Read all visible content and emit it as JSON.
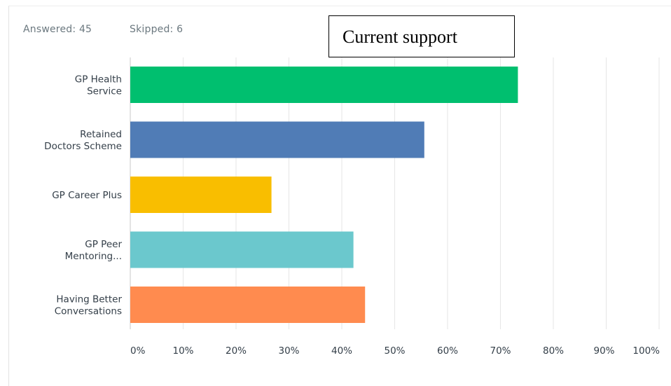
{
  "summary": {
    "answered_label": "Answered:",
    "answered_value": "45",
    "skipped_label": "Skipped:",
    "skipped_value": "6"
  },
  "annotation": {
    "text": "Current support"
  },
  "colors": {
    "text": "#333e48",
    "muted": "#6b787f",
    "grid": "#e6e6e6",
    "axis": "#c8c8c8"
  },
  "chart_data": {
    "type": "bar",
    "orientation": "horizontal",
    "categories": [
      [
        "GP Health",
        "Service"
      ],
      [
        "Retained",
        "Doctors Scheme"
      ],
      [
        "GP Career Plus"
      ],
      [
        "GP Peer",
        "Mentoring..."
      ],
      [
        "Having Better",
        "Conversations"
      ]
    ],
    "values": [
      73.3,
      55.6,
      26.7,
      42.2,
      44.4
    ],
    "colors": [
      "#00bf6f",
      "#507cb6",
      "#f9be00",
      "#6bc8cd",
      "#ff8b4f"
    ],
    "x_ticks": [
      "0%",
      "10%",
      "20%",
      "30%",
      "40%",
      "50%",
      "60%",
      "70%",
      "80%",
      "90%",
      "100%"
    ],
    "xlim": [
      0,
      100
    ],
    "grid": true,
    "legend": "none"
  }
}
